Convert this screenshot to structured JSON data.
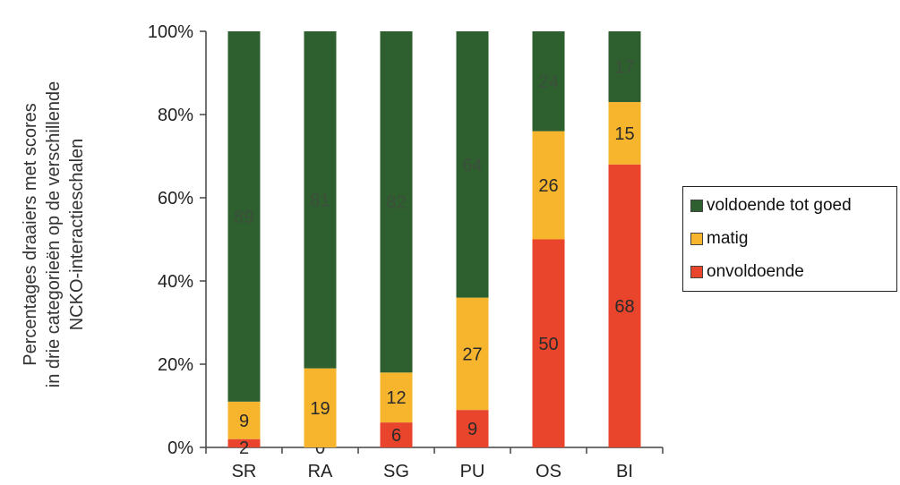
{
  "chart_data": {
    "type": "bar",
    "stacked": "percent",
    "categories": [
      "SR",
      "RA",
      "SG",
      "PU",
      "OS",
      "BI"
    ],
    "series": [
      {
        "name": "onvoldoende",
        "color": "#e8452c",
        "values": [
          2,
          0,
          6,
          9,
          50,
          68
        ]
      },
      {
        "name": "matig",
        "color": "#f7b52d",
        "values": [
          9,
          19,
          12,
          27,
          26,
          15
        ]
      },
      {
        "name": "voldoende tot goed",
        "color": "#2e5f2e",
        "values": [
          89,
          81,
          82,
          64,
          24,
          17
        ]
      }
    ],
    "legend_order": [
      "voldoende tot goed",
      "matig",
      "onvoldoende"
    ],
    "ylabel_lines": [
      "Percentages draaiers met scores",
      "in drie categorieën op de verschillende",
      "NCKO-interactieschalen"
    ],
    "yticks": [
      "0%",
      "20%",
      "40%",
      "60%",
      "80%",
      "100%"
    ],
    "ylim": [
      0,
      100
    ],
    "legend_position": "right",
    "grid": false
  }
}
